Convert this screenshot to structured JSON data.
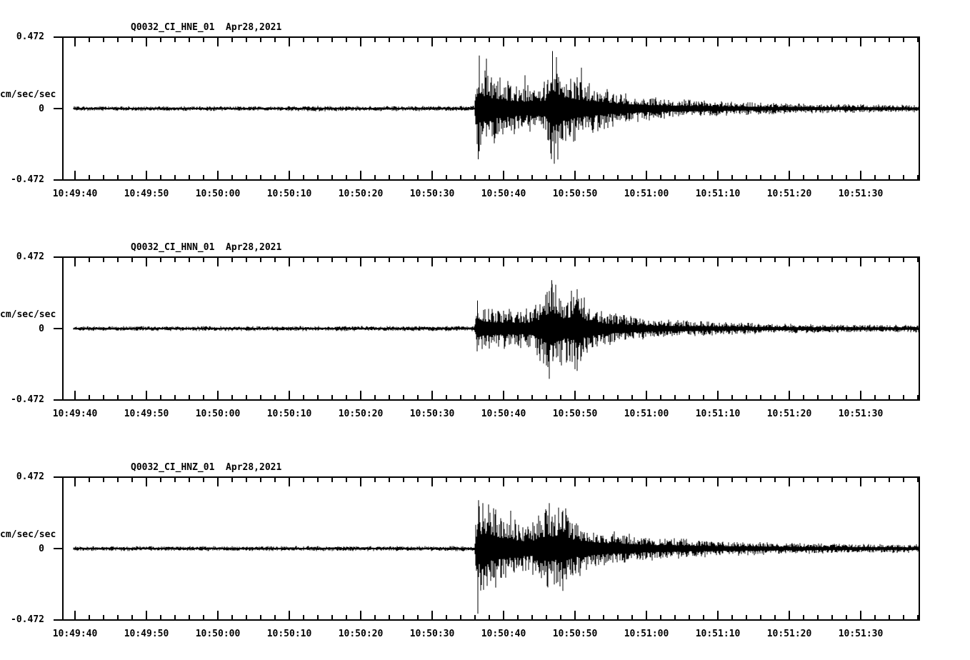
{
  "page": {
    "background": "#ffffff",
    "ink": "#000000"
  },
  "chart_data": {
    "type": "line",
    "kind": "three-component strong-motion seismogram",
    "x_axis": {
      "tick_labels": [
        "10:49:40",
        "10:49:50",
        "10:50:00",
        "10:50:10",
        "10:50:20",
        "10:50:30",
        "10:50:40",
        "10:50:50",
        "10:51:00",
        "10:51:10",
        "10:51:20",
        "10:51:30"
      ],
      "major_interval_sec": 10,
      "minor_interval_sec": 2,
      "window_start_sec_before_first_label": 1.7,
      "window_end_sec_after_last_label": 8.2
    },
    "y_axis": {
      "max_label": "0.472",
      "zero_label": "0",
      "min_label": "-0.472",
      "unit": "cm/sec/sec",
      "ylim": [
        -0.472,
        0.472
      ],
      "grid": false
    },
    "panels": [
      {
        "title": "Q0032_CI_HNE_01  Apr28,2021",
        "station": "Q0032",
        "network": "CI",
        "channel": "HNE",
        "location": "01",
        "date": "Apr28,2021",
        "trace": {
          "pre_event_noise_amp": 0.014,
          "event_onset_sec_after_first_tick": 56.2,
          "peak_amplitude": 0.38,
          "envelope_sec_amp": [
            [
              -0.5,
              0.014
            ],
            [
              30,
              0.014
            ],
            [
              34,
              0.017
            ],
            [
              40,
              0.015
            ],
            [
              50,
              0.016
            ],
            [
              55.9,
              0.016
            ],
            [
              56.3,
              0.3
            ],
            [
              57.0,
              0.27
            ],
            [
              58.5,
              0.21
            ],
            [
              60,
              0.17
            ],
            [
              62,
              0.145
            ],
            [
              64,
              0.135
            ],
            [
              65.8,
              0.16
            ],
            [
              66.8,
              0.36
            ],
            [
              67.6,
              0.3
            ],
            [
              68.6,
              0.23
            ],
            [
              70,
              0.19
            ],
            [
              72,
              0.15
            ],
            [
              74.5,
              0.115
            ],
            [
              77,
              0.09
            ],
            [
              80,
              0.072
            ],
            [
              83,
              0.058
            ],
            [
              87,
              0.05
            ],
            [
              91,
              0.042
            ],
            [
              95,
              0.036
            ],
            [
              100,
              0.03
            ],
            [
              106,
              0.026
            ],
            [
              112,
              0.024
            ],
            [
              118.5,
              0.022
            ]
          ],
          "spikes_sec_amp": [
            [
              56.45,
              -0.335
            ],
            [
              56.6,
              0.35
            ],
            [
              57.6,
              0.33
            ],
            [
              63.0,
              0.22
            ],
            [
              66.85,
              0.38
            ],
            [
              67.1,
              -0.365
            ],
            [
              67.4,
              0.34
            ],
            [
              70.9,
              0.27
            ]
          ]
        }
      },
      {
        "title": "Q0032_CI_HNN_01  Apr28,2021",
        "station": "Q0032",
        "network": "CI",
        "channel": "HNN",
        "location": "01",
        "date": "Apr28,2021",
        "trace": {
          "pre_event_noise_amp": 0.014,
          "event_onset_sec_after_first_tick": 56.2,
          "peak_amplitude": 0.32,
          "envelope_sec_amp": [
            [
              -0.5,
              0.014
            ],
            [
              55.9,
              0.015
            ],
            [
              56.3,
              0.17
            ],
            [
              57.2,
              0.145
            ],
            [
              59,
              0.125
            ],
            [
              61,
              0.115
            ],
            [
              63,
              0.115
            ],
            [
              64.5,
              0.14
            ],
            [
              65.8,
              0.25
            ],
            [
              66.7,
              0.32
            ],
            [
              67.6,
              0.23
            ],
            [
              68.8,
              0.2
            ],
            [
              70.3,
              0.25
            ],
            [
              71.5,
              0.17
            ],
            [
              73,
              0.135
            ],
            [
              74.5,
              0.1
            ],
            [
              77,
              0.078
            ],
            [
              80,
              0.062
            ],
            [
              84,
              0.05
            ],
            [
              88,
              0.042
            ],
            [
              93,
              0.035
            ],
            [
              99,
              0.029
            ],
            [
              106,
              0.025
            ],
            [
              112,
              0.023
            ],
            [
              118.5,
              0.022
            ]
          ],
          "spikes_sec_amp": [
            [
              56.35,
              0.185
            ],
            [
              66.75,
              0.32
            ],
            [
              66.9,
              -0.215
            ],
            [
              67.3,
              0.29
            ],
            [
              68.9,
              -0.21
            ],
            [
              70.3,
              0.26
            ]
          ]
        }
      },
      {
        "title": "Q0032_CI_HNZ_01  Apr28,2021",
        "station": "Q0032",
        "network": "CI",
        "channel": "HNZ",
        "location": "01",
        "date": "Apr28,2021",
        "trace": {
          "pre_event_noise_amp": 0.014,
          "event_onset_sec_after_first_tick": 56.2,
          "peak_amplitude": 0.43,
          "envelope_sec_amp": [
            [
              -0.5,
              0.014
            ],
            [
              55.9,
              0.015
            ],
            [
              56.3,
              0.32
            ],
            [
              57.0,
              0.29
            ],
            [
              58.5,
              0.24
            ],
            [
              60.5,
              0.19
            ],
            [
              62.5,
              0.155
            ],
            [
              64,
              0.15
            ],
            [
              65.4,
              0.22
            ],
            [
              66.3,
              0.27
            ],
            [
              67.3,
              0.23
            ],
            [
              68.3,
              0.26
            ],
            [
              69.5,
              0.19
            ],
            [
              71,
              0.155
            ],
            [
              73,
              0.125
            ],
            [
              75,
              0.105
            ],
            [
              78,
              0.085
            ],
            [
              81,
              0.07
            ],
            [
              85,
              0.058
            ],
            [
              89,
              0.05
            ],
            [
              94,
              0.04
            ],
            [
              100,
              0.033
            ],
            [
              107,
              0.028
            ],
            [
              118.5,
              0.025
            ]
          ],
          "spikes_sec_amp": [
            [
              56.4,
              -0.43
            ],
            [
              56.5,
              0.32
            ],
            [
              57.1,
              0.3
            ],
            [
              61.0,
              0.25
            ],
            [
              65.9,
              0.26
            ],
            [
              66.4,
              0.3
            ],
            [
              67.9,
              -0.25
            ],
            [
              68.3,
              -0.28
            ]
          ]
        }
      }
    ]
  }
}
